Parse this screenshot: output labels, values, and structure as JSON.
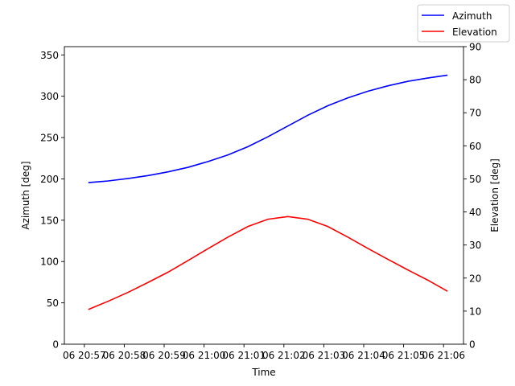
{
  "chart_data": {
    "type": "line",
    "xlabel": "Time",
    "ylabel_left": "Azimuth [deg]",
    "ylabel_right": "Elevation [deg]",
    "x_tick_labels": [
      "06 20:57",
      "06 20:58",
      "06 20:59",
      "06 21:00",
      "06 21:01",
      "06 21:02",
      "06 21:03",
      "06 21:04",
      "06 21:05",
      "06 21:06"
    ],
    "x_tick_minutes": [
      57,
      58,
      59,
      60,
      61,
      62,
      63,
      64,
      65,
      66
    ],
    "xlim_minutes": [
      56.5,
      66.5
    ],
    "ylim_left": [
      0,
      360
    ],
    "yticks_left": [
      0,
      50,
      100,
      150,
      200,
      250,
      300,
      350
    ],
    "ylim_right": [
      0,
      90
    ],
    "yticks_right": [
      0,
      10,
      20,
      30,
      40,
      50,
      60,
      70,
      80,
      90
    ],
    "x_minutes": [
      57.1,
      57.6,
      58.1,
      58.6,
      59.1,
      59.6,
      60.1,
      60.6,
      61.1,
      61.6,
      62.1,
      62.6,
      63.1,
      63.6,
      64.1,
      64.6,
      65.1,
      65.6,
      66.1
    ],
    "series": [
      {
        "name": "Azimuth",
        "axis": "left",
        "color": "#0000ff",
        "values": [
          195.5,
          197.5,
          200.5,
          204,
          208.5,
          214,
          221,
          229,
          239,
          251,
          264,
          277,
          288.5,
          298,
          306,
          312.5,
          318,
          322,
          325.5
        ]
      },
      {
        "name": "Elevation",
        "axis": "right",
        "color": "#ff0000",
        "values": [
          10.5,
          13,
          15.7,
          18.7,
          21.8,
          25.3,
          28.9,
          32.4,
          35.6,
          37.8,
          38.6,
          37.8,
          35.6,
          32.4,
          29,
          25.7,
          22.5,
          19.4,
          16
        ]
      }
    ],
    "legend_position": "top-right",
    "grid": false
  }
}
